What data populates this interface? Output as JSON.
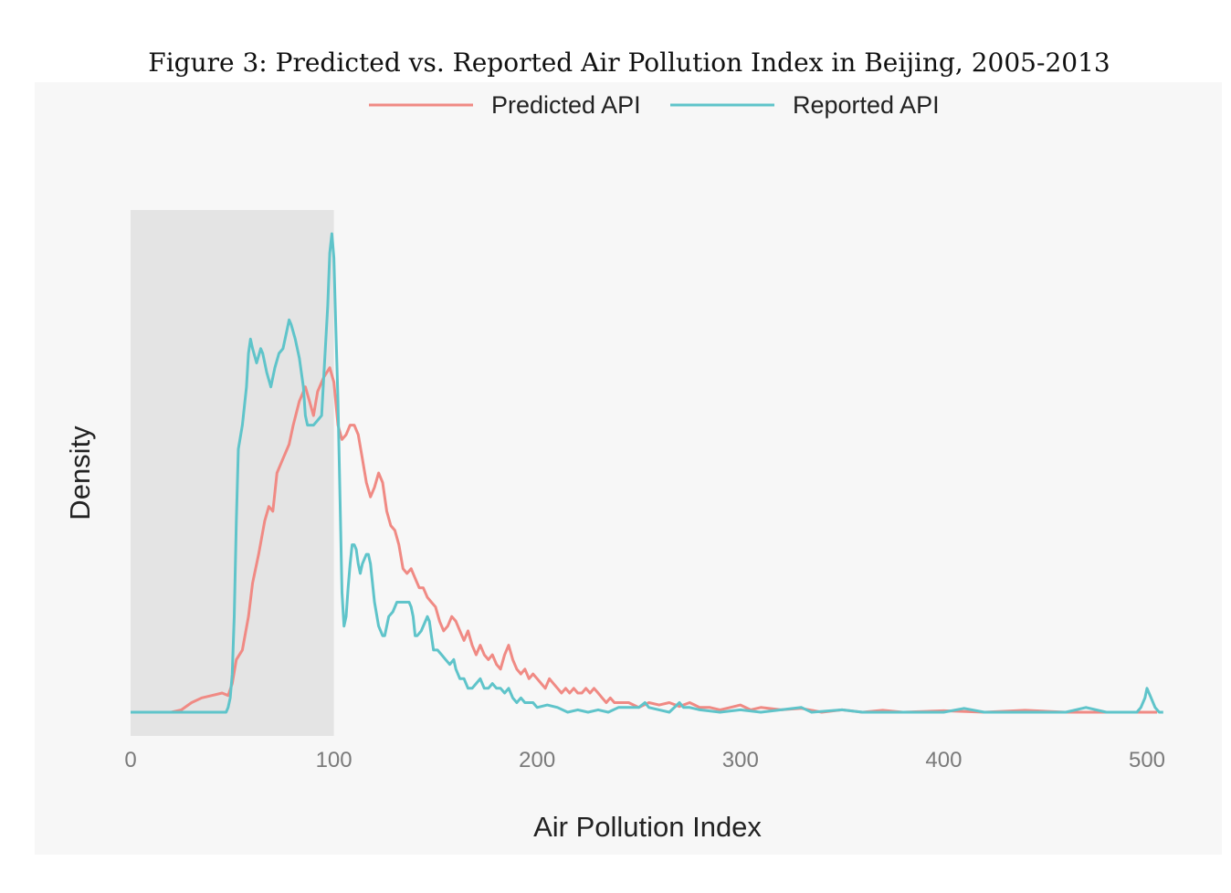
{
  "chart_data": {
    "type": "line",
    "title": "Figure 3: Predicted vs. Reported Air Pollution Index in Beijing, 2005-2013",
    "xlabel": "Air Pollution Index",
    "ylabel": "Density",
    "xlim": [
      0,
      510
    ],
    "ylim": [
      0,
      1.05
    ],
    "xticks": [
      0,
      100,
      200,
      300,
      400,
      500
    ],
    "grid": false,
    "legend": "top-center",
    "shaded_region": {
      "x0": 0,
      "x1": 100,
      "color": "#e4e4e4"
    },
    "series": [
      {
        "name": "Predicted API",
        "color": "#f08a84",
        "points": [
          [
            0,
            0
          ],
          [
            20,
            0
          ],
          [
            25,
            0.005
          ],
          [
            30,
            0.02
          ],
          [
            35,
            0.03
          ],
          [
            40,
            0.035
          ],
          [
            45,
            0.04
          ],
          [
            48,
            0.035
          ],
          [
            50,
            0.06
          ],
          [
            52,
            0.11
          ],
          [
            55,
            0.13
          ],
          [
            58,
            0.2
          ],
          [
            60,
            0.27
          ],
          [
            63,
            0.33
          ],
          [
            66,
            0.4
          ],
          [
            68,
            0.43
          ],
          [
            70,
            0.42
          ],
          [
            72,
            0.5
          ],
          [
            75,
            0.53
          ],
          [
            78,
            0.56
          ],
          [
            80,
            0.6
          ],
          [
            83,
            0.65
          ],
          [
            86,
            0.68
          ],
          [
            88,
            0.65
          ],
          [
            90,
            0.62
          ],
          [
            92,
            0.67
          ],
          [
            95,
            0.7
          ],
          [
            98,
            0.72
          ],
          [
            100,
            0.69
          ],
          [
            102,
            0.6
          ],
          [
            104,
            0.57
          ],
          [
            106,
            0.58
          ],
          [
            108,
            0.6
          ],
          [
            110,
            0.6
          ],
          [
            112,
            0.58
          ],
          [
            114,
            0.53
          ],
          [
            116,
            0.48
          ],
          [
            118,
            0.45
          ],
          [
            120,
            0.47
          ],
          [
            122,
            0.5
          ],
          [
            124,
            0.48
          ],
          [
            126,
            0.42
          ],
          [
            128,
            0.39
          ],
          [
            130,
            0.38
          ],
          [
            132,
            0.35
          ],
          [
            134,
            0.3
          ],
          [
            136,
            0.29
          ],
          [
            138,
            0.3
          ],
          [
            140,
            0.28
          ],
          [
            142,
            0.26
          ],
          [
            144,
            0.26
          ],
          [
            146,
            0.24
          ],
          [
            148,
            0.23
          ],
          [
            150,
            0.22
          ],
          [
            152,
            0.19
          ],
          [
            154,
            0.17
          ],
          [
            156,
            0.18
          ],
          [
            158,
            0.2
          ],
          [
            160,
            0.19
          ],
          [
            162,
            0.17
          ],
          [
            164,
            0.15
          ],
          [
            166,
            0.17
          ],
          [
            168,
            0.14
          ],
          [
            170,
            0.12
          ],
          [
            172,
            0.14
          ],
          [
            174,
            0.12
          ],
          [
            176,
            0.11
          ],
          [
            178,
            0.12
          ],
          [
            180,
            0.1
          ],
          [
            182,
            0.09
          ],
          [
            184,
            0.12
          ],
          [
            186,
            0.14
          ],
          [
            188,
            0.11
          ],
          [
            190,
            0.09
          ],
          [
            192,
            0.08
          ],
          [
            194,
            0.09
          ],
          [
            196,
            0.07
          ],
          [
            198,
            0.08
          ],
          [
            200,
            0.07
          ],
          [
            202,
            0.06
          ],
          [
            204,
            0.05
          ],
          [
            206,
            0.07
          ],
          [
            208,
            0.06
          ],
          [
            210,
            0.05
          ],
          [
            212,
            0.04
          ],
          [
            214,
            0.05
          ],
          [
            216,
            0.04
          ],
          [
            218,
            0.05
          ],
          [
            220,
            0.04
          ],
          [
            222,
            0.04
          ],
          [
            224,
            0.05
          ],
          [
            226,
            0.04
          ],
          [
            228,
            0.05
          ],
          [
            230,
            0.04
          ],
          [
            232,
            0.03
          ],
          [
            234,
            0.02
          ],
          [
            236,
            0.03
          ],
          [
            238,
            0.02
          ],
          [
            240,
            0.02
          ],
          [
            245,
            0.02
          ],
          [
            250,
            0.01
          ],
          [
            255,
            0.02
          ],
          [
            260,
            0.015
          ],
          [
            265,
            0.02
          ],
          [
            270,
            0.012
          ],
          [
            275,
            0.02
          ],
          [
            280,
            0.01
          ],
          [
            285,
            0.01
          ],
          [
            290,
            0.005
          ],
          [
            295,
            0.01
          ],
          [
            300,
            0.015
          ],
          [
            305,
            0.005
          ],
          [
            310,
            0.01
          ],
          [
            320,
            0.005
          ],
          [
            330,
            0.008
          ],
          [
            340,
            0
          ],
          [
            350,
            0.005
          ],
          [
            360,
            0
          ],
          [
            370,
            0.004
          ],
          [
            380,
            0
          ],
          [
            400,
            0.003
          ],
          [
            420,
            0
          ],
          [
            440,
            0.004
          ],
          [
            460,
            0
          ],
          [
            480,
            0
          ],
          [
            500,
            0
          ],
          [
            505,
            0
          ]
        ]
      },
      {
        "name": "Reported API",
        "color": "#5fc4ca",
        "points": [
          [
            0,
            0
          ],
          [
            20,
            0
          ],
          [
            40,
            0
          ],
          [
            47,
            0
          ],
          [
            48,
            0.01
          ],
          [
            49,
            0.03
          ],
          [
            50,
            0.08
          ],
          [
            51,
            0.2
          ],
          [
            52,
            0.4
          ],
          [
            53,
            0.55
          ],
          [
            55,
            0.6
          ],
          [
            57,
            0.68
          ],
          [
            58,
            0.75
          ],
          [
            59,
            0.78
          ],
          [
            60,
            0.76
          ],
          [
            62,
            0.73
          ],
          [
            64,
            0.76
          ],
          [
            65,
            0.75
          ],
          [
            67,
            0.71
          ],
          [
            69,
            0.68
          ],
          [
            71,
            0.72
          ],
          [
            73,
            0.75
          ],
          [
            75,
            0.76
          ],
          [
            77,
            0.8
          ],
          [
            78,
            0.82
          ],
          [
            79,
            0.81
          ],
          [
            81,
            0.78
          ],
          [
            83,
            0.74
          ],
          [
            85,
            0.68
          ],
          [
            86,
            0.62
          ],
          [
            87,
            0.6
          ],
          [
            88,
            0.6
          ],
          [
            90,
            0.6
          ],
          [
            92,
            0.61
          ],
          [
            94,
            0.62
          ],
          [
            95,
            0.7
          ],
          [
            97,
            0.85
          ],
          [
            98,
            0.96
          ],
          [
            99,
            1.0
          ],
          [
            100,
            0.95
          ],
          [
            101,
            0.8
          ],
          [
            102,
            0.65
          ],
          [
            103,
            0.45
          ],
          [
            104,
            0.25
          ],
          [
            105,
            0.18
          ],
          [
            106,
            0.2
          ],
          [
            107,
            0.26
          ],
          [
            108,
            0.31
          ],
          [
            109,
            0.35
          ],
          [
            110,
            0.35
          ],
          [
            111,
            0.34
          ],
          [
            112,
            0.31
          ],
          [
            113,
            0.29
          ],
          [
            114,
            0.31
          ],
          [
            116,
            0.33
          ],
          [
            117,
            0.33
          ],
          [
            118,
            0.31
          ],
          [
            119,
            0.27
          ],
          [
            120,
            0.23
          ],
          [
            122,
            0.18
          ],
          [
            124,
            0.16
          ],
          [
            125,
            0.16
          ],
          [
            127,
            0.2
          ],
          [
            129,
            0.21
          ],
          [
            131,
            0.23
          ],
          [
            133,
            0.23
          ],
          [
            135,
            0.23
          ],
          [
            137,
            0.23
          ],
          [
            138,
            0.22
          ],
          [
            139,
            0.2
          ],
          [
            140,
            0.16
          ],
          [
            141,
            0.16
          ],
          [
            143,
            0.17
          ],
          [
            145,
            0.19
          ],
          [
            146,
            0.2
          ],
          [
            147,
            0.19
          ],
          [
            148,
            0.16
          ],
          [
            149,
            0.13
          ],
          [
            151,
            0.13
          ],
          [
            153,
            0.12
          ],
          [
            155,
            0.11
          ],
          [
            157,
            0.1
          ],
          [
            159,
            0.11
          ],
          [
            160,
            0.09
          ],
          [
            162,
            0.07
          ],
          [
            164,
            0.07
          ],
          [
            166,
            0.05
          ],
          [
            168,
            0.05
          ],
          [
            170,
            0.06
          ],
          [
            172,
            0.07
          ],
          [
            174,
            0.05
          ],
          [
            176,
            0.05
          ],
          [
            178,
            0.06
          ],
          [
            180,
            0.05
          ],
          [
            182,
            0.05
          ],
          [
            184,
            0.04
          ],
          [
            186,
            0.05
          ],
          [
            188,
            0.03
          ],
          [
            190,
            0.02
          ],
          [
            192,
            0.03
          ],
          [
            194,
            0.02
          ],
          [
            196,
            0.02
          ],
          [
            198,
            0.02
          ],
          [
            200,
            0.01
          ],
          [
            205,
            0.015
          ],
          [
            210,
            0.01
          ],
          [
            215,
            0
          ],
          [
            220,
            0.005
          ],
          [
            225,
            0
          ],
          [
            230,
            0.005
          ],
          [
            235,
            0
          ],
          [
            240,
            0.01
          ],
          [
            245,
            0.01
          ],
          [
            250,
            0.01
          ],
          [
            253,
            0.02
          ],
          [
            255,
            0.01
          ],
          [
            260,
            0.005
          ],
          [
            265,
            0
          ],
          [
            270,
            0.02
          ],
          [
            272,
            0.01
          ],
          [
            275,
            0.01
          ],
          [
            280,
            0.005
          ],
          [
            290,
            0
          ],
          [
            300,
            0.005
          ],
          [
            310,
            0
          ],
          [
            320,
            0.005
          ],
          [
            330,
            0.01
          ],
          [
            335,
            0
          ],
          [
            350,
            0.005
          ],
          [
            360,
            0
          ],
          [
            400,
            0
          ],
          [
            410,
            0.008
          ],
          [
            420,
            0
          ],
          [
            430,
            0
          ],
          [
            440,
            0
          ],
          [
            450,
            0
          ],
          [
            460,
            0
          ],
          [
            470,
            0.01
          ],
          [
            480,
            0
          ],
          [
            490,
            0
          ],
          [
            495,
            0
          ],
          [
            497,
            0.01
          ],
          [
            499,
            0.03
          ],
          [
            500,
            0.05
          ],
          [
            502,
            0.03
          ],
          [
            504,
            0.01
          ],
          [
            506,
            0
          ],
          [
            508,
            0
          ]
        ]
      }
    ]
  }
}
